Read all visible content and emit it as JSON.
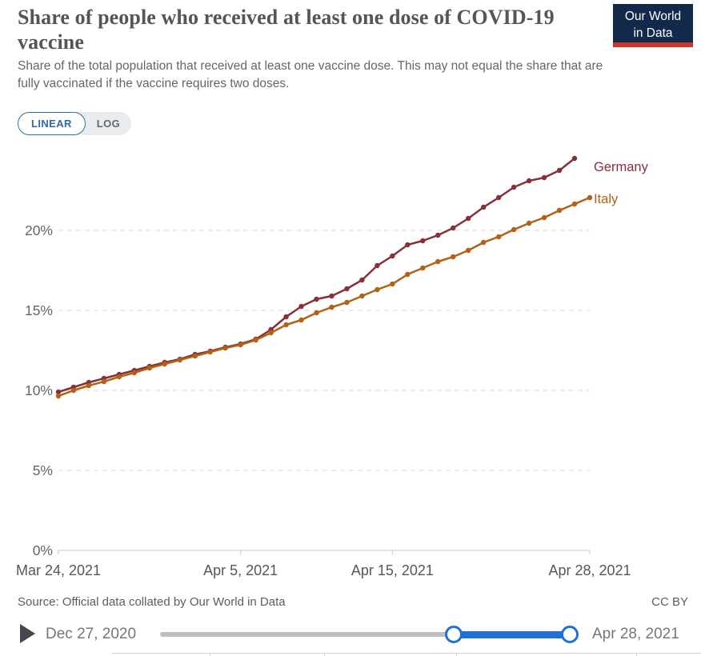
{
  "header": {
    "title": "Share of people who received at least one dose of COVID-19 vaccine",
    "subtitle": "Share of the total population that received at least one vaccine dose. This may not equal the share that are fully vaccinated if the vaccine requires two doses."
  },
  "logo": {
    "line1": "Our World",
    "line2": "in Data",
    "bg_color": "#12294B",
    "bar_color": "#CE352C"
  },
  "toggle": {
    "linear_label": "LINEAR",
    "log_label": "LOG",
    "selected": "LINEAR",
    "accent_color": "#2d6a9f"
  },
  "chart_data": {
    "type": "line",
    "title": "Share of people who received at least one dose of COVID-19 vaccine",
    "grid": true,
    "ylim": [
      0,
      25.5
    ],
    "y_ticks": [
      {
        "value": 0,
        "label": "0%"
      },
      {
        "value": 5,
        "label": "5%"
      },
      {
        "value": 10,
        "label": "10%"
      },
      {
        "value": 15,
        "label": "15%"
      },
      {
        "value": 20,
        "label": "20%"
      }
    ],
    "x_ticks": [
      {
        "day": 0,
        "label": "Mar 24, 2021"
      },
      {
        "day": 12,
        "label": "Apr 5, 2021"
      },
      {
        "day": 22,
        "label": "Apr 15, 2021"
      },
      {
        "day": 35,
        "label": "Apr 28, 2021"
      }
    ],
    "x_domain_days": [
      0,
      35
    ],
    "legend_position": "end-of-line-labels",
    "series": [
      {
        "name": "Germany",
        "color": "#883039",
        "start_day": 0,
        "values": [
          9.9,
          10.2,
          10.5,
          10.75,
          11.0,
          11.25,
          11.5,
          11.75,
          11.95,
          12.25,
          12.45,
          12.7,
          12.9,
          13.2,
          13.8,
          14.6,
          15.25,
          15.7,
          15.9,
          16.35,
          16.9,
          17.8,
          18.4,
          19.1,
          19.35,
          19.7,
          20.15,
          20.75,
          21.45,
          22.05,
          22.7,
          23.1,
          23.3,
          23.75,
          24.5
        ]
      },
      {
        "name": "Italy",
        "color": "#B16214",
        "start_day": 0,
        "values": [
          9.65,
          10.0,
          10.3,
          10.55,
          10.85,
          11.1,
          11.4,
          11.65,
          11.9,
          12.15,
          12.4,
          12.65,
          12.85,
          13.15,
          13.6,
          14.1,
          14.4,
          14.85,
          15.2,
          15.5,
          15.9,
          16.3,
          16.65,
          17.25,
          17.65,
          18.05,
          18.35,
          18.75,
          19.25,
          19.6,
          20.05,
          20.45,
          20.8,
          21.25,
          21.65,
          22.05
        ]
      }
    ]
  },
  "footer": {
    "source": "Source: Official data collated by Our World in Data",
    "license": "CC BY"
  },
  "timeline": {
    "start_label": "Dec 27, 2020",
    "end_label": "Apr 28, 2021",
    "play_icon": "play-icon",
    "track_color": "#bdbfc1",
    "active_color": "#2170d8"
  }
}
